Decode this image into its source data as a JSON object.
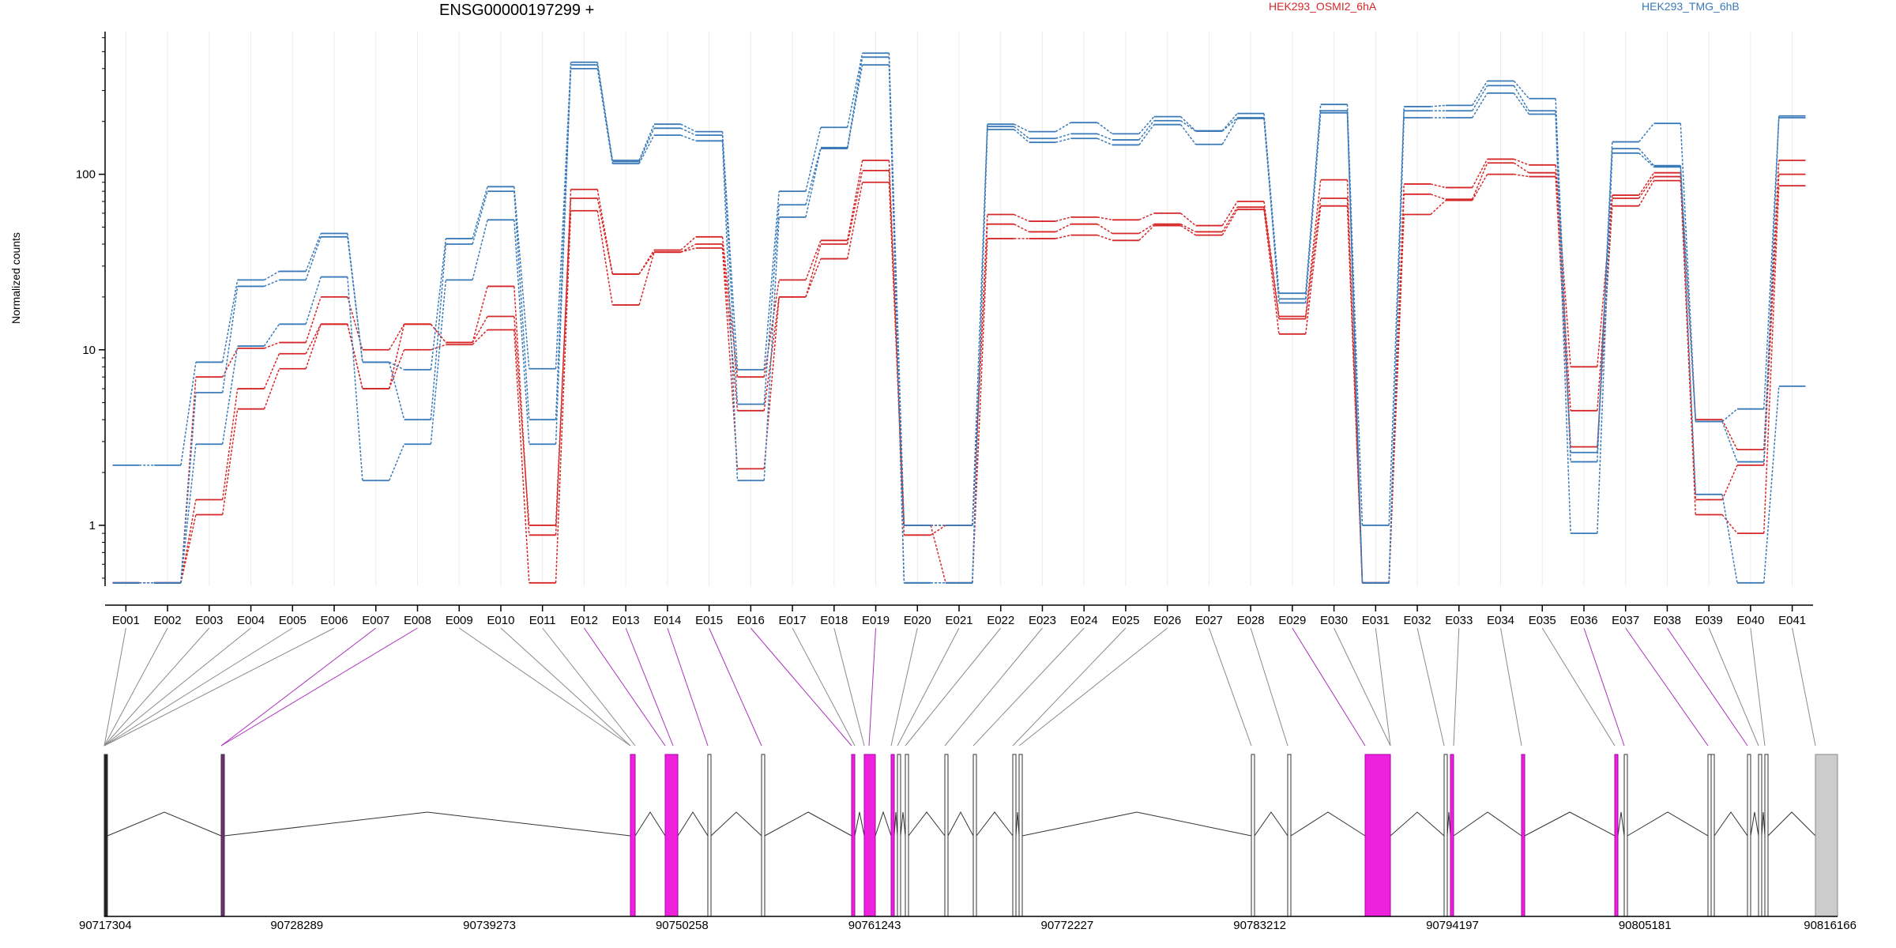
{
  "chart_data": {
    "type": "line",
    "title": "ENSG00000197299 +",
    "ylabel": "Normalized counts",
    "xlabel": "",
    "yscale": "log",
    "ylim": [
      0.45,
      650
    ],
    "yticks": [
      "1",
      "10",
      "100"
    ],
    "grid": "vertical",
    "legend_placement": "top-right",
    "categories": [
      "E001",
      "E002",
      "E003",
      "E004",
      "E005",
      "E006",
      "E007",
      "E008",
      "E009",
      "E010",
      "E011",
      "E012",
      "E013",
      "E014",
      "E015",
      "E016",
      "E017",
      "E018",
      "E019",
      "E020",
      "E021",
      "E022",
      "E023",
      "E024",
      "E025",
      "E026",
      "E027",
      "E028",
      "E029",
      "E030",
      "E031",
      "E032",
      "E033",
      "E034",
      "E035",
      "E036",
      "E037",
      "E038",
      "E039",
      "E040",
      "E041"
    ],
    "series": [
      {
        "name": "HEK293_OSMI2_6hA",
        "color": "#d62728",
        "values": [
          0.47,
          0.47,
          7.0,
          10.2,
          11.0,
          20.0,
          10.0,
          14.0,
          11.0,
          23.0,
          0.88,
          82,
          27,
          37,
          44,
          7.0,
          25,
          42,
          120,
          1.0,
          1.0,
          59,
          54,
          57,
          55,
          60,
          51,
          70,
          15.5,
          93,
          0.47,
          88,
          84,
          122,
          113,
          8.0,
          76,
          102,
          4.0,
          2.7,
          120
        ]
      },
      {
        "name": "HEK293_OSMI2_6hA",
        "color": "#d62728",
        "values": [
          0.47,
          0.47,
          1.4,
          6.0,
          9.5,
          14.0,
          6.0,
          14.0,
          11.0,
          15.5,
          1.0,
          73,
          27,
          36,
          40,
          4.5,
          20,
          40,
          105,
          0.88,
          1.0,
          52,
          47,
          52,
          46,
          52,
          47,
          65,
          15.0,
          73,
          0.47,
          77,
          72,
          116,
          102,
          4.5,
          73,
          97,
          1.4,
          2.2,
          100
        ]
      },
      {
        "name": "HEK293_OSMI2_6hA",
        "color": "#d62728",
        "values": [
          0.47,
          0.47,
          1.15,
          4.6,
          7.8,
          14.0,
          6.0,
          10.0,
          10.7,
          13.0,
          0.47,
          62,
          18,
          36,
          38,
          2.1,
          20,
          33,
          90,
          1.0,
          0.47,
          43,
          43,
          45,
          42,
          51,
          45,
          63,
          12.3,
          66,
          0.47,
          59,
          71,
          100,
          97,
          2.8,
          66,
          92,
          1.15,
          0.9,
          86
        ]
      },
      {
        "name": "HEK293_TMG_6hB",
        "color": "#3a7ab8",
        "values": [
          2.2,
          2.2,
          8.5,
          25,
          28,
          46,
          8.5,
          7.7,
          43,
          85,
          7.8,
          435,
          120,
          193,
          175,
          7.7,
          80,
          185,
          490,
          1.0,
          1.0,
          193,
          175,
          197,
          170,
          213,
          177,
          222,
          21,
          250,
          1.0,
          243,
          247,
          340,
          270,
          2.6,
          153,
          195,
          3.9,
          4.6,
          210
        ]
      },
      {
        "name": "HEK293_TMG_6hB",
        "color": "#3a7ab8",
        "values": [
          0.47,
          0.47,
          5.7,
          23,
          25,
          44,
          8.5,
          4.0,
          40,
          80,
          4.0,
          420,
          118,
          183,
          167,
          4.9,
          67,
          142,
          465,
          0.47,
          0.47,
          187,
          160,
          170,
          157,
          202,
          176,
          210,
          19.5,
          230,
          0.47,
          230,
          230,
          320,
          230,
          2.3,
          140,
          112,
          3.9,
          2.3,
          215
        ]
      },
      {
        "name": "HEK293_TMG_6hB",
        "color": "#3a7ab8",
        "values": [
          0.47,
          0.47,
          2.9,
          10.5,
          14,
          26,
          1.8,
          2.9,
          25,
          55,
          2.9,
          400,
          115,
          167,
          155,
          1.8,
          57,
          140,
          420,
          0.47,
          0.47,
          180,
          152,
          160,
          147,
          192,
          148,
          208,
          18.5,
          224,
          0.47,
          210,
          210,
          290,
          220,
          0.9,
          132,
          110,
          1.5,
          0.47,
          6.2
        ]
      }
    ],
    "gene_model": {
      "exon_labels": [
        "E001",
        "E002",
        "E003",
        "E004",
        "E005",
        "E006",
        "E007",
        "E008",
        "E009",
        "E010",
        "E011",
        "E012",
        "E013",
        "E014",
        "E015",
        "E016",
        "E017",
        "E018",
        "E019",
        "E020",
        "E021",
        "E022",
        "E023",
        "E024",
        "E025",
        "E026",
        "E027",
        "E028",
        "E029",
        "E030",
        "E031",
        "E032",
        "E033",
        "E034",
        "E035",
        "E036",
        "E037",
        "E038",
        "E039",
        "E040",
        "E041"
      ],
      "significant": [
        false,
        false,
        false,
        false,
        false,
        false,
        true,
        true,
        false,
        false,
        false,
        true,
        true,
        true,
        true,
        true,
        false,
        false,
        true,
        false,
        false,
        false,
        false,
        false,
        false,
        false,
        false,
        false,
        true,
        false,
        false,
        false,
        false,
        false,
        false,
        true,
        true,
        true,
        false,
        false,
        false
      ],
      "genomic_ticks": [
        "90717304",
        "90728289",
        "90739273",
        "90750258",
        "90761243",
        "90772227",
        "90783212",
        "90794197",
        "90805181",
        "90816166"
      ]
    }
  }
}
